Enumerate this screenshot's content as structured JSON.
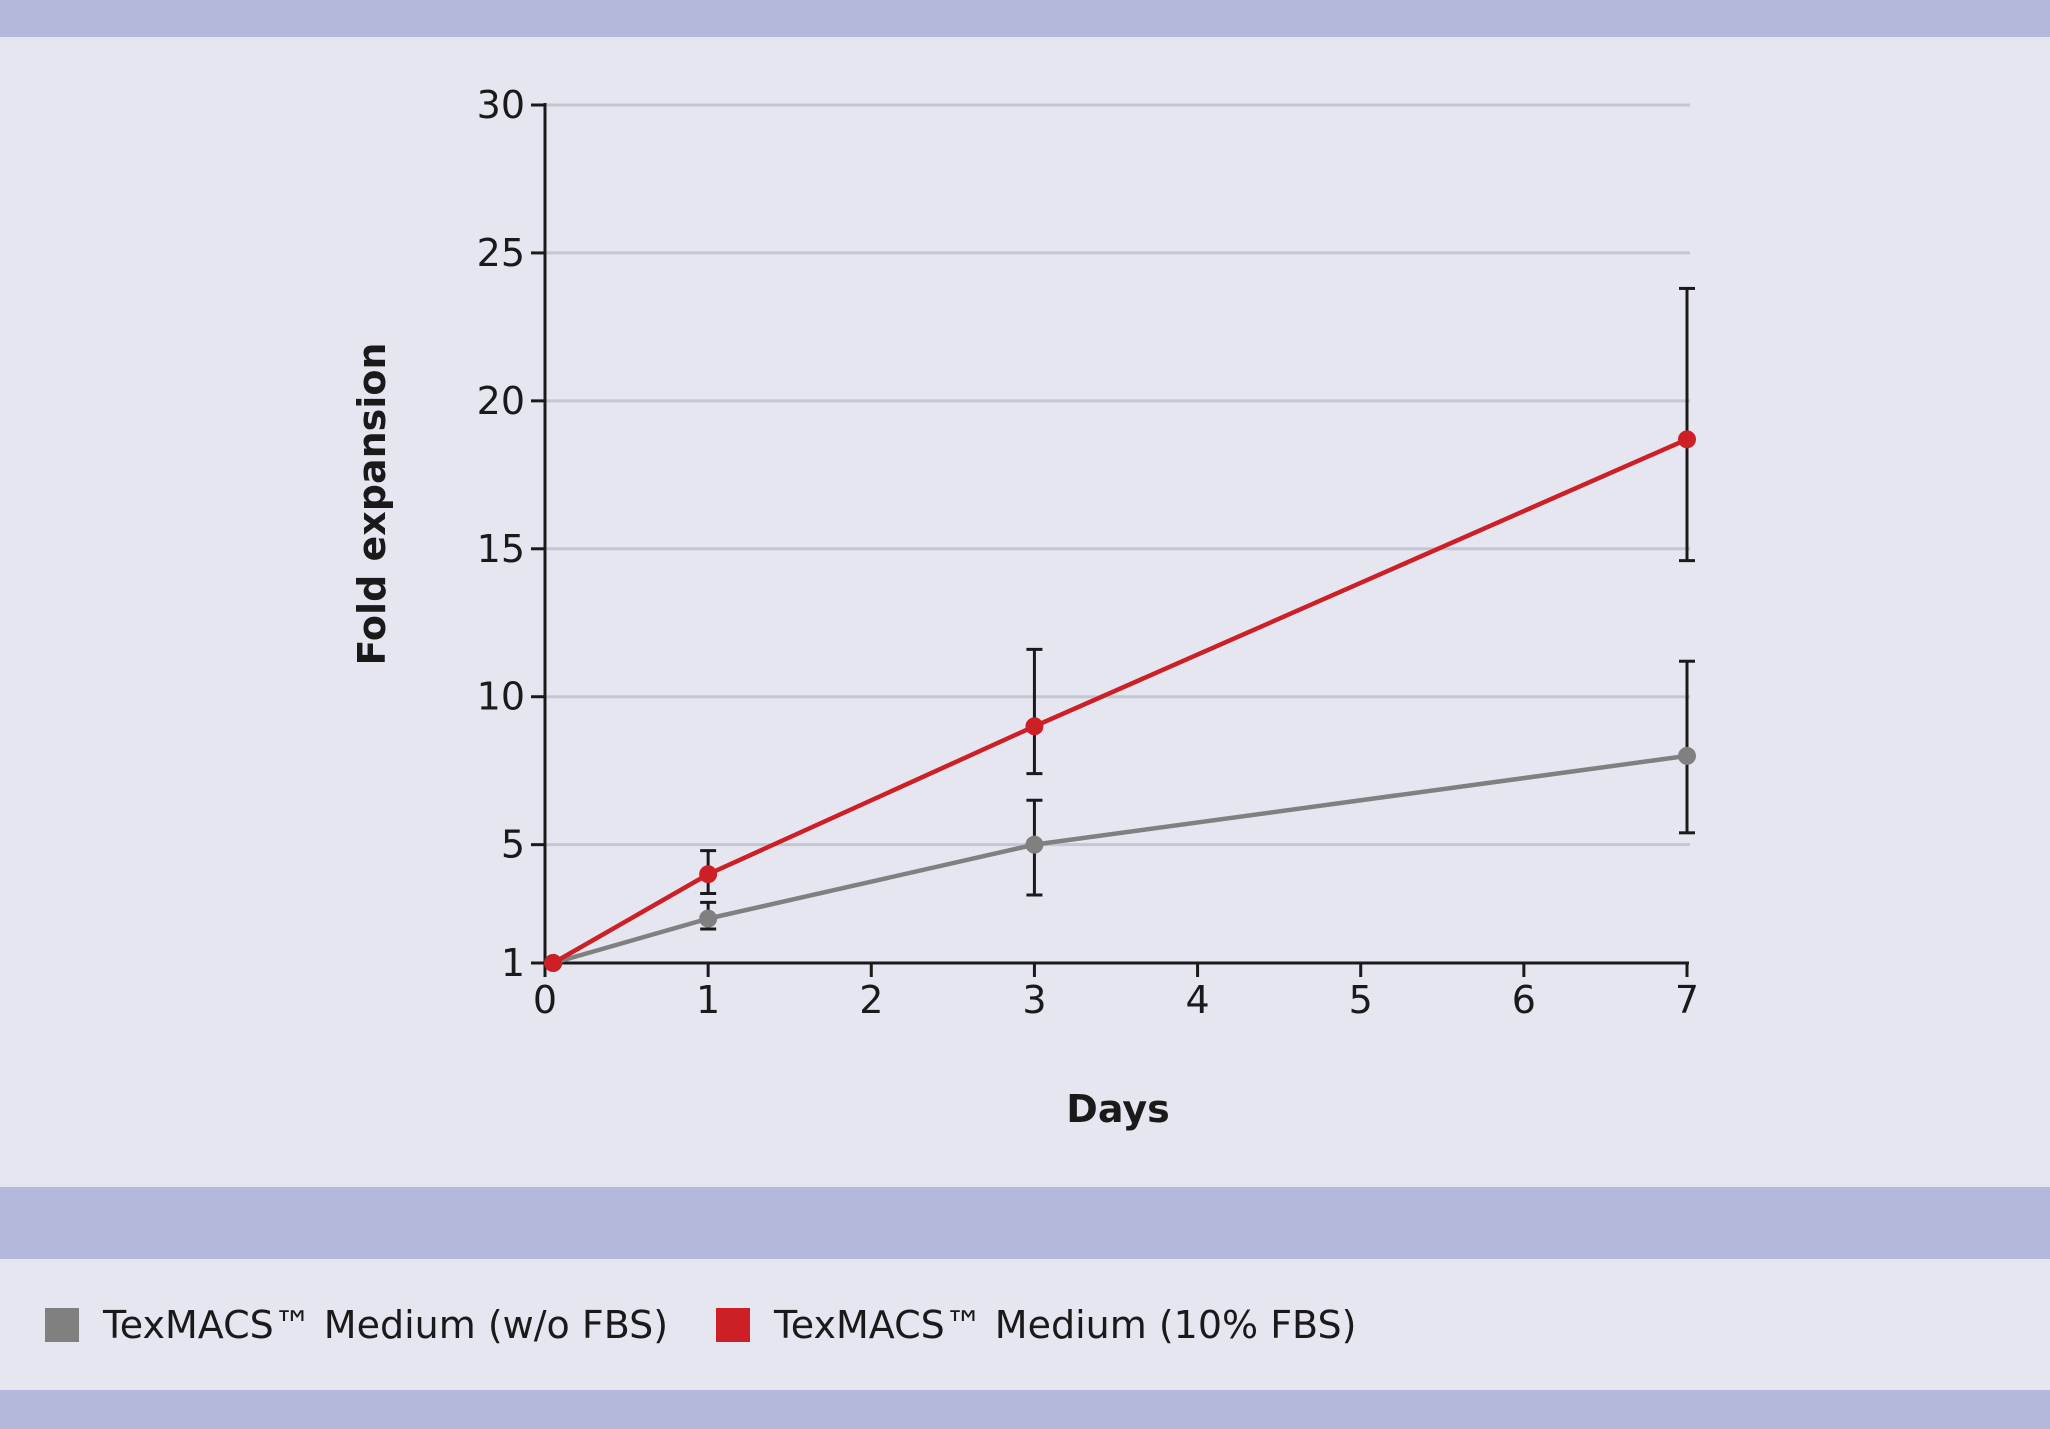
{
  "chart_data": {
    "type": "line",
    "title": "",
    "xlabel": "Days",
    "ylabel": "Fold expansion",
    "xlim": [
      0,
      7
    ],
    "ylim": [
      1,
      30
    ],
    "x_ticks": [
      0,
      1,
      2,
      3,
      4,
      5,
      6,
      7
    ],
    "y_ticks": [
      1,
      5,
      10,
      15,
      20,
      25,
      30
    ],
    "grid": true,
    "legend_position": "bottom",
    "series": [
      {
        "name": "TexMACS™ Medium (w/o FBS)",
        "color": "#808080",
        "x": [
          0.05,
          1,
          3,
          7
        ],
        "values": [
          1,
          2.5,
          5,
          8
        ],
        "error_low": [
          1,
          2.15,
          3.3,
          5.4
        ],
        "error_high": [
          1,
          3.05,
          6.5,
          11.2
        ]
      },
      {
        "name": "TexMACS™ Medium (10% FBS)",
        "color": "#cc1f26",
        "x": [
          0.05,
          1,
          3,
          7
        ],
        "values": [
          1,
          4,
          9,
          18.7
        ],
        "error_low": [
          1,
          3.35,
          7.4,
          14.6
        ],
        "error_high": [
          1,
          4.8,
          11.6,
          23.8
        ]
      }
    ]
  },
  "legend": {
    "items": [
      {
        "label": "TexMACS™ Medium (w/o FBS)",
        "color": "#808080"
      },
      {
        "label": "TexMACS™ Medium (10% FBS)",
        "color": "#cc1f26"
      }
    ]
  },
  "colors": {
    "band": "#b4b8da",
    "panel": "#e5e6f0",
    "grid": "#c4c6d2",
    "axis": "#1a1a1a"
  }
}
